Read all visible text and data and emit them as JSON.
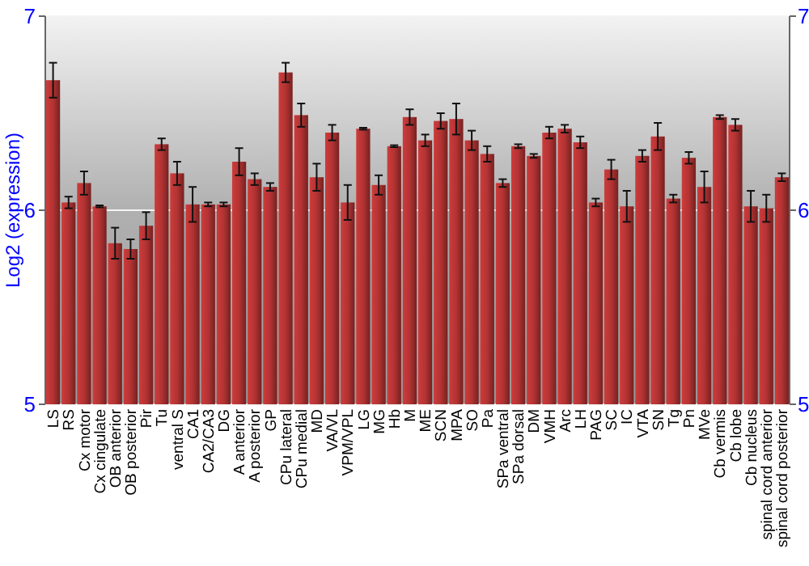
{
  "chart_data": {
    "type": "bar",
    "ylabel": "Log2 (expression)",
    "categories": [
      "LS",
      "RS",
      "Cx motor",
      "Cx cingulate",
      "OB anterior",
      "OB posterior",
      "Pir",
      "Tu",
      "ventral S",
      "CA1",
      "CA2/CA3",
      "DG",
      "A anterior",
      "A posterior",
      "GP",
      "CPu lateral",
      "CPu medial",
      "MD",
      "VA/VL",
      "VPM/VPL",
      "LG",
      "MG",
      "Hb",
      "M",
      "ME",
      "SCN",
      "MPA",
      "SO",
      "Pa",
      "SPa ventral",
      "SPa dorsal",
      "DM",
      "VMH",
      "Arc",
      "LH",
      "PAG",
      "SC",
      "IC",
      "VTA",
      "SN",
      "Tg",
      "Pn",
      "MVe",
      "Cb vermis",
      "Cb lobe",
      "Cb nucleus",
      "spinal cord anterior",
      "spinal cord posterior"
    ],
    "values": [
      6.67,
      6.04,
      6.14,
      6.02,
      5.83,
      5.8,
      5.92,
      6.34,
      6.19,
      6.03,
      6.03,
      6.03,
      6.25,
      6.16,
      6.12,
      6.71,
      6.49,
      6.17,
      6.4,
      6.04,
      6.42,
      6.13,
      6.33,
      6.48,
      6.36,
      6.46,
      6.47,
      6.36,
      6.29,
      6.14,
      6.33,
      6.28,
      6.4,
      6.42,
      6.35,
      6.04,
      6.21,
      6.02,
      6.28,
      6.38,
      6.06,
      6.27,
      6.12,
      6.48,
      6.44,
      6.02,
      6.01,
      6.17
    ],
    "errors": [
      0.09,
      0.03,
      0.06,
      0.005,
      0.08,
      0.05,
      0.07,
      0.03,
      0.06,
      0.09,
      0.01,
      0.01,
      0.07,
      0.03,
      0.02,
      0.05,
      0.06,
      0.07,
      0.04,
      0.09,
      0.005,
      0.05,
      0.005,
      0.04,
      0.03,
      0.04,
      0.08,
      0.05,
      0.04,
      0.02,
      0.01,
      0.01,
      0.03,
      0.02,
      0.03,
      0.02,
      0.05,
      0.08,
      0.03,
      0.07,
      0.02,
      0.03,
      0.08,
      0.01,
      0.03,
      0.08,
      0.07,
      0.02
    ],
    "color": "#b33333",
    "ylim": [
      5,
      7
    ],
    "yticks": [
      5,
      6,
      7
    ],
    "y2lim": [
      5,
      7
    ],
    "y2ticks": [
      5,
      6,
      7
    ],
    "grid": "y"
  }
}
